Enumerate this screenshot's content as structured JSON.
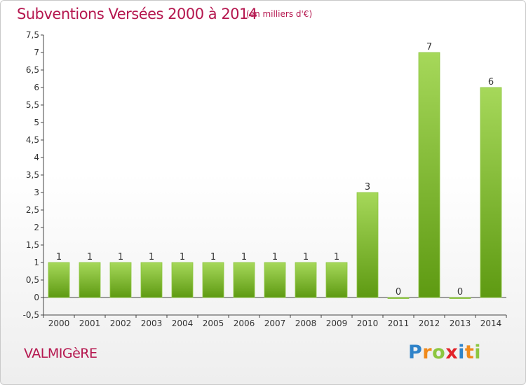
{
  "header": {
    "title": "Subventions Versées 2000 à 2014",
    "subtitle": "(en milliers d'€)"
  },
  "footer": {
    "place": "VALMIGèRE",
    "logo_letters": [
      "P",
      "r",
      "o",
      "x",
      "i",
      "t",
      "i"
    ],
    "logo_colors": [
      "#2f83c9",
      "#f08a1c",
      "#8cc63f",
      "#e2232a",
      "#2f83c9",
      "#f08a1c",
      "#8cc63f"
    ]
  },
  "chart_data": {
    "type": "bar",
    "title": "Subventions Versées 2000 à 2014",
    "subtitle": "(en milliers d'€)",
    "xlabel": "",
    "ylabel": "",
    "categories": [
      "2000",
      "2001",
      "2002",
      "2003",
      "2004",
      "2005",
      "2006",
      "2007",
      "2008",
      "2009",
      "2010",
      "2011",
      "2012",
      "2013",
      "2014"
    ],
    "values": [
      1,
      1,
      1,
      1,
      1,
      1,
      1,
      1,
      1,
      1,
      3,
      0,
      7,
      0,
      6
    ],
    "data_labels": [
      "1",
      "1",
      "1",
      "1",
      "1",
      "1",
      "1",
      "1",
      "1",
      "1",
      "3",
      "0",
      "7",
      "0",
      "6"
    ],
    "ylim": [
      -0.5,
      7.5
    ],
    "yticks": [
      "-0,5",
      "0",
      "0,5",
      "1",
      "1,5",
      "2",
      "2,5",
      "3",
      "3,5",
      "4",
      "4,5",
      "5",
      "5,5",
      "6",
      "6,5",
      "7",
      "7,5"
    ],
    "ytick_values": [
      -0.5,
      0,
      0.5,
      1,
      1.5,
      2,
      2.5,
      3,
      3.5,
      4,
      4.5,
      5,
      5.5,
      6,
      6.5,
      7,
      7.5
    ],
    "bar_color_top": "#a6d85a",
    "bar_color_bottom": "#5e9a12",
    "grid": false,
    "legend": "none"
  }
}
